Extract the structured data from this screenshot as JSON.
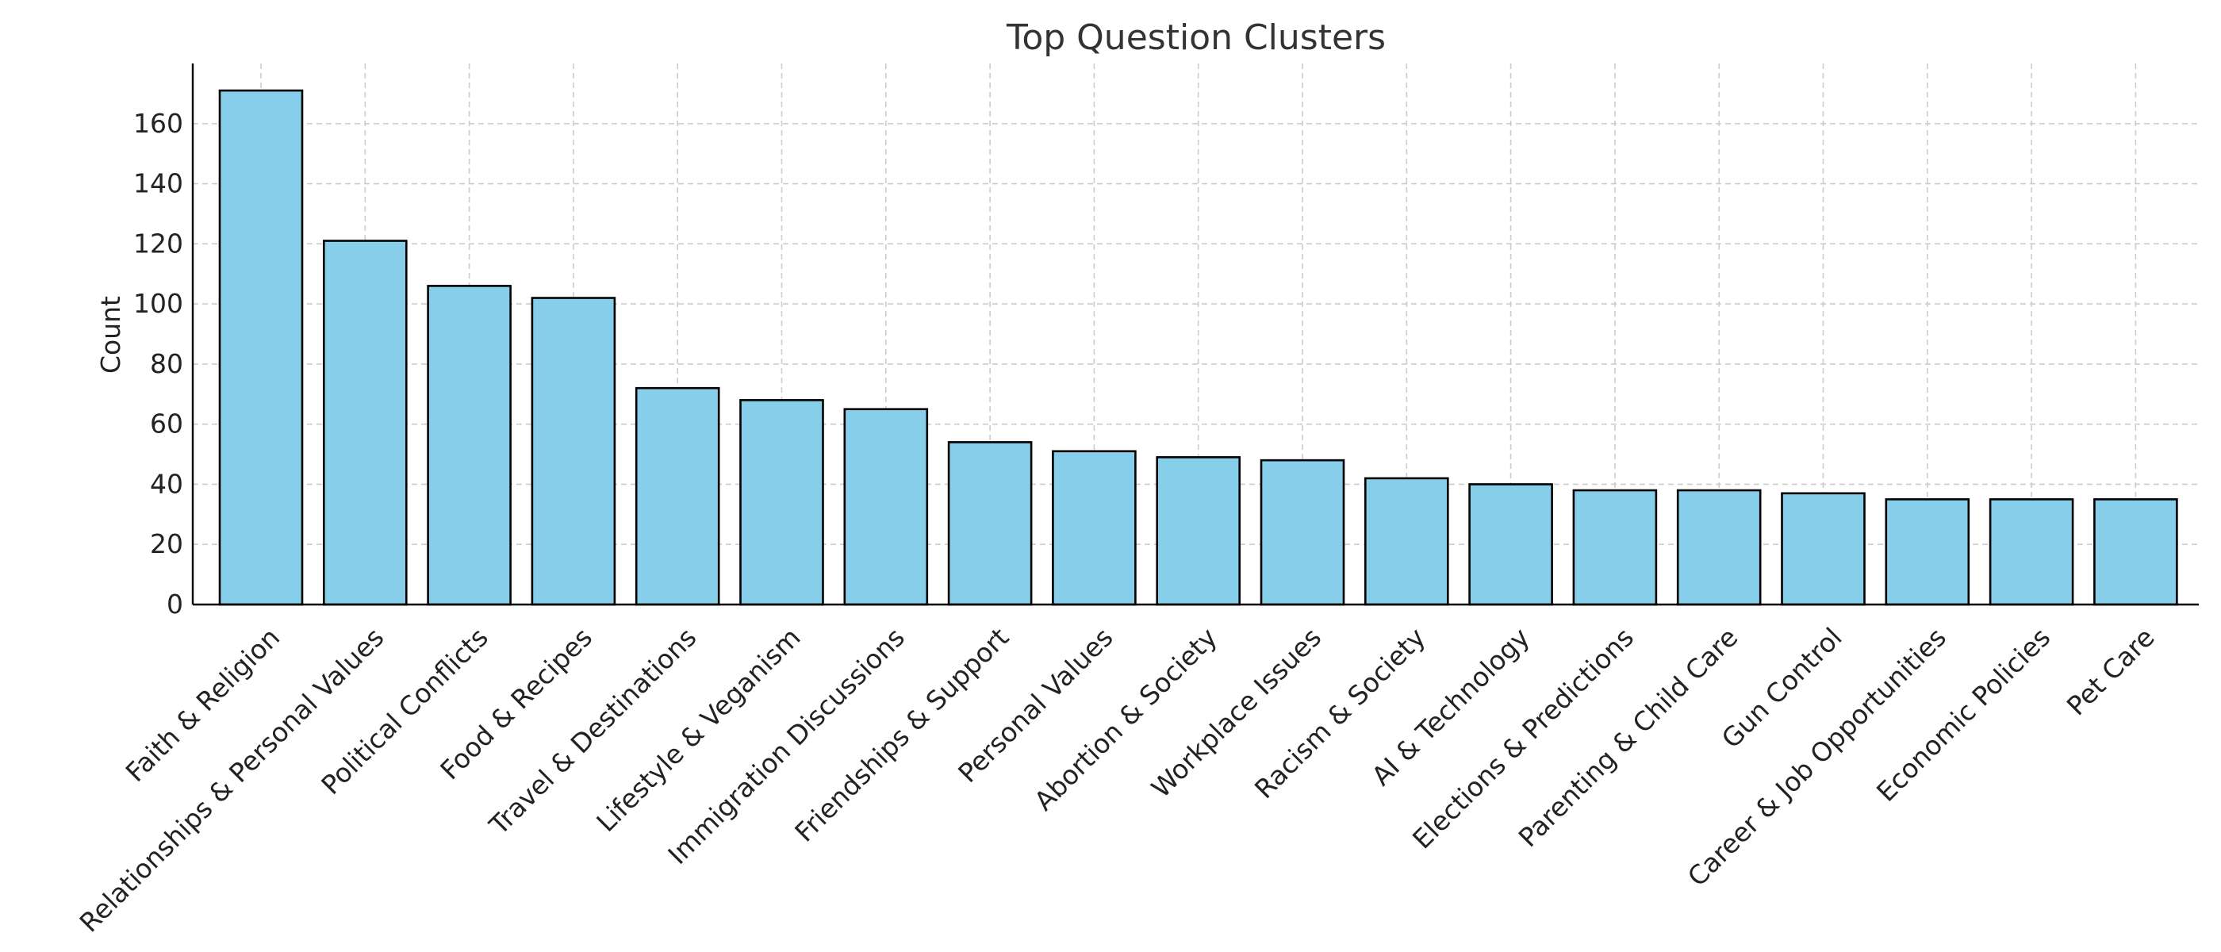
{
  "chart_data": {
    "type": "bar",
    "title": "Top Question Clusters",
    "xlabel": "",
    "ylabel": "Count",
    "ylim": [
      0,
      180
    ],
    "yticks": [
      0,
      20,
      40,
      60,
      80,
      100,
      120,
      140,
      160
    ],
    "grid": true,
    "categories": [
      "Faith & Religion",
      "Relationships & Personal Values",
      "Political Conflicts",
      "Food & Recipes",
      "Travel & Destinations",
      "Lifestyle & Veganism",
      "Immigration Discussions",
      "Friendships & Support",
      "Personal Values",
      "Abortion & Society",
      "Workplace Issues",
      "Racism & Society",
      "AI & Technology",
      "Elections & Predictions",
      "Parenting & Child Care",
      "Gun Control",
      "Career & Job Opportunities",
      "Economic Policies",
      "Pet Care"
    ],
    "values": [
      171,
      121,
      106,
      102,
      72,
      68,
      65,
      54,
      51,
      49,
      48,
      42,
      40,
      38,
      38,
      37,
      35,
      35,
      35
    ],
    "colors": {
      "bar_fill": "#87ceeb",
      "bar_edge": "#000000",
      "grid": "#cccccc",
      "axis": "#000000",
      "text": "#222222",
      "title": "#333333"
    }
  }
}
